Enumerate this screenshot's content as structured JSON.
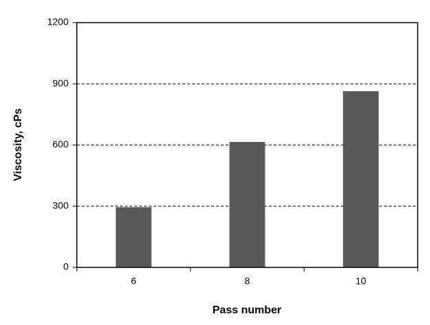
{
  "chart_data": {
    "type": "bar",
    "x_label": "Pass number",
    "y_label": "Viscosity, cPs",
    "categories": [
      "6",
      "8",
      "10"
    ],
    "values": [
      295,
      615,
      864
    ],
    "color": "#595959",
    "ylim": [
      0,
      1200
    ],
    "yticks": [
      0,
      300,
      600,
      900,
      1200
    ],
    "grid": true
  }
}
